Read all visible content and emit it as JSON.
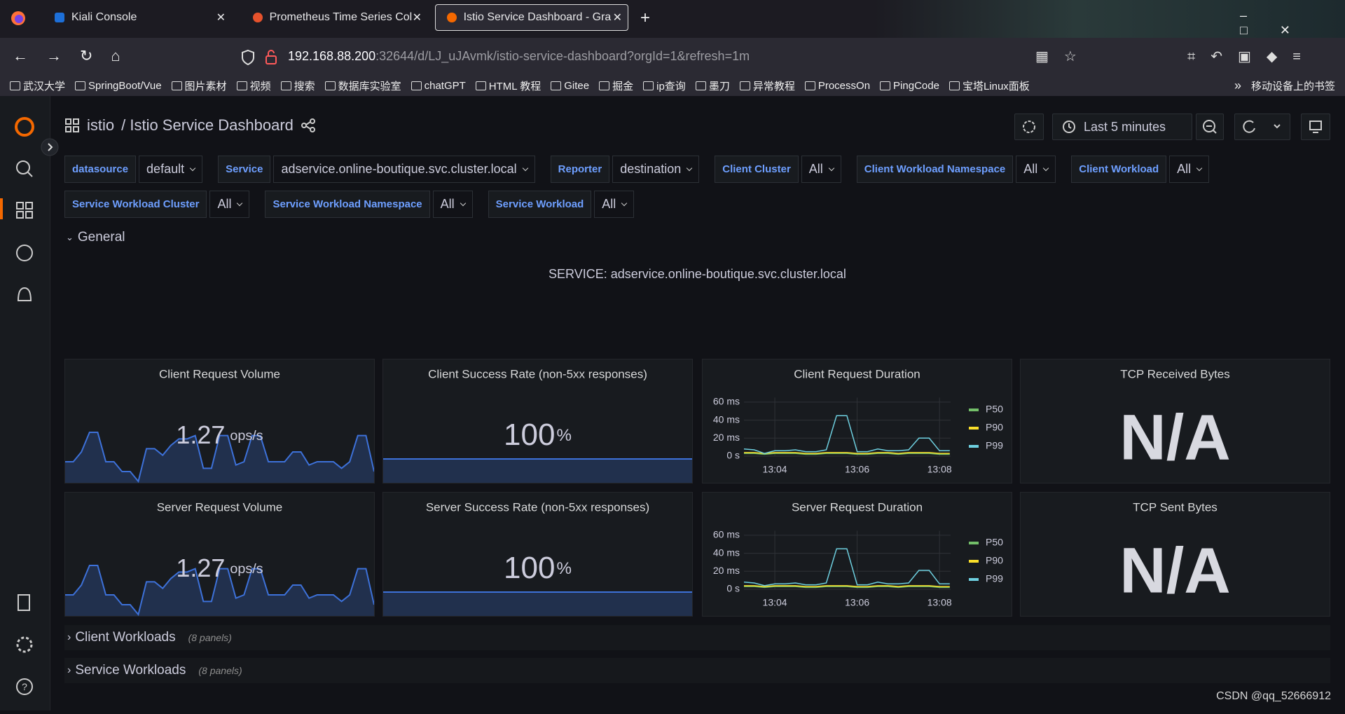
{
  "browser": {
    "tabs": [
      "Kiali Console",
      "Prometheus Time Series Coll",
      "Istio Service Dashboard - Gra"
    ],
    "url_host": "192.168.88.200",
    "url_rest": ":32644/d/LJ_uJAvmk/istio-service-dashboard?orgId=1&refresh=1m",
    "bookmarks": [
      "武汉大学",
      "SpringBoot/Vue",
      "图片素材",
      "视频",
      "搜索",
      "数据库实验室",
      "chatGPT",
      "HTML 教程",
      "Gitee",
      "掘金",
      "ip查询",
      "墨刀",
      "异常教程",
      "ProcessOn",
      "PingCode",
      "宝塔Linux面板"
    ],
    "mobile_bookmarks": "移动设备上的书签"
  },
  "dashboard": {
    "folder": "istio",
    "title": "/ Istio Service Dashboard",
    "time_range": "Last 5 minutes",
    "variables": [
      {
        "label": "datasource",
        "value": "default"
      },
      {
        "label": "Service",
        "value": "adservice.online-boutique.svc.cluster.local"
      },
      {
        "label": "Reporter",
        "value": "destination"
      },
      {
        "label": "Client Cluster",
        "value": "All"
      },
      {
        "label": "Client Workload Namespace",
        "value": "All"
      },
      {
        "label": "Client Workload",
        "value": "All"
      },
      {
        "label": "Service Workload Cluster",
        "value": "All"
      },
      {
        "label": "Service Workload Namespace",
        "value": "All"
      },
      {
        "label": "Service Workload",
        "value": "All"
      }
    ],
    "general_row": "General",
    "service_text": "SERVICE: adservice.online-boutique.svc.cluster.local",
    "panels": [
      {
        "type": "stat",
        "title": "Client Request Volume",
        "value": 1.27,
        "unit": "ops/s",
        "color": "#3d71d9",
        "sparkline": [
          0.6,
          0.6,
          0.9,
          1.5,
          1.5,
          0.6,
          0.6,
          0.3,
          0.3,
          0,
          1.0,
          1.0,
          0.8,
          1.1,
          1.3,
          1.3,
          1.4,
          0.4,
          0.4,
          1.4,
          1.4,
          0.5,
          0.6,
          1.4,
          1.4,
          0.6,
          0.6,
          0.6,
          0.9,
          0.9,
          0.5,
          0.6,
          0.6,
          0.6,
          0.4,
          0.6,
          1.4,
          1.4,
          0.3
        ]
      },
      {
        "type": "stat",
        "title": "Client Success Rate (non-5xx responses)",
        "value": 100,
        "unit": "%",
        "color": "#3d71d9",
        "sparkline": [
          100,
          100
        ]
      },
      {
        "type": "line",
        "title": "Client Request Duration",
        "x": [
          783.25,
          783.5,
          783.75,
          784,
          784.25,
          784.5,
          784.75,
          785,
          785.25,
          785.5,
          785.75,
          786,
          786.25,
          786.5,
          786.75,
          787,
          787.25,
          787.5,
          787.75,
          788,
          788.25
        ],
        "xlim": [
          783.25,
          788.27
        ],
        "xticks": [
          {
            "value": 784,
            "label": "13:04"
          },
          {
            "value": 786,
            "label": "13:06"
          },
          {
            "value": 788,
            "label": "13:08"
          }
        ],
        "ylim": [
          0,
          65
        ],
        "yticks": [
          {
            "value": 0,
            "label": "0 s"
          },
          {
            "value": 20,
            "label": "20 ms"
          },
          {
            "value": 40,
            "label": "40 ms"
          },
          {
            "value": 60,
            "label": "60 ms"
          }
        ],
        "series": [
          {
            "name": "P50",
            "color": "#73bf69",
            "values": [
              3,
              3,
              2,
              3,
              3,
              3,
              2,
              2,
              3,
              3,
              3,
              2,
              2,
              3,
              3,
              2,
              3,
              3,
              3,
              2,
              2
            ]
          },
          {
            "name": "P90",
            "color": "#fade2a",
            "values": [
              4,
              4,
              3,
              4,
              4,
              4,
              3,
              3,
              4,
              4,
              4,
              3,
              3,
              4,
              4,
              3,
              4,
              4,
              4,
              3,
              3
            ]
          },
          {
            "name": "P99",
            "color": "#6ed0e0",
            "values": [
              8,
              7,
              3,
              6,
              6,
              7,
              5,
              5,
              7,
              45,
              45,
              5,
              5,
              8,
              6,
              6,
              7,
              20,
              20,
              6,
              6
            ]
          }
        ]
      },
      {
        "type": "stat",
        "title": "TCP Received Bytes",
        "value": "N/A"
      },
      {
        "type": "stat",
        "title": "Server Request Volume",
        "value": 1.27,
        "unit": "ops/s",
        "color": "#3d71d9",
        "sparkline": [
          0.6,
          0.6,
          0.9,
          1.5,
          1.5,
          0.6,
          0.6,
          0.3,
          0.3,
          0,
          1.0,
          1.0,
          0.8,
          1.1,
          1.3,
          1.3,
          1.4,
          0.4,
          0.4,
          1.4,
          1.4,
          0.5,
          0.6,
          1.4,
          1.4,
          0.6,
          0.6,
          0.6,
          0.9,
          0.9,
          0.5,
          0.6,
          0.6,
          0.6,
          0.4,
          0.6,
          1.4,
          1.4,
          0.3
        ]
      },
      {
        "type": "stat",
        "title": "Server Success Rate (non-5xx responses)",
        "value": 100,
        "unit": "%",
        "color": "#3d71d9",
        "sparkline": [
          100,
          100
        ]
      },
      {
        "type": "line",
        "title": "Server Request Duration",
        "x": [
          783.25,
          783.5,
          783.75,
          784,
          784.25,
          784.5,
          784.75,
          785,
          785.25,
          785.5,
          785.75,
          786,
          786.25,
          786.5,
          786.75,
          787,
          787.25,
          787.5,
          787.75,
          788,
          788.25
        ],
        "xlim": [
          783.25,
          788.27
        ],
        "xticks": [
          {
            "value": 784,
            "label": "13:04"
          },
          {
            "value": 786,
            "label": "13:06"
          },
          {
            "value": 788,
            "label": "13:08"
          }
        ],
        "ylim": [
          0,
          65
        ],
        "yticks": [
          {
            "value": 0,
            "label": "0 s"
          },
          {
            "value": 20,
            "label": "20 ms"
          },
          {
            "value": 40,
            "label": "40 ms"
          },
          {
            "value": 60,
            "label": "60 ms"
          }
        ],
        "series": [
          {
            "name": "P50",
            "color": "#73bf69",
            "values": [
              3,
              3,
              2,
              3,
              3,
              3,
              2,
              2,
              3,
              3,
              3,
              2,
              2,
              3,
              3,
              2,
              3,
              3,
              3,
              2,
              2
            ]
          },
          {
            "name": "P90",
            "color": "#fade2a",
            "values": [
              4,
              4,
              3,
              4,
              4,
              4,
              3,
              3,
              4,
              4,
              4,
              3,
              3,
              4,
              4,
              3,
              4,
              4,
              4,
              3,
              3
            ]
          },
          {
            "name": "P99",
            "color": "#6ed0e0",
            "values": [
              8,
              7,
              4,
              6,
              6,
              7,
              5,
              5,
              7,
              45,
              45,
              5,
              5,
              8,
              6,
              6,
              7,
              21,
              21,
              6,
              6
            ]
          }
        ]
      },
      {
        "type": "stat",
        "title": "TCP Sent Bytes",
        "value": "N/A"
      }
    ],
    "collapsed_rows": [
      {
        "title": "Client Workloads",
        "count": "(8 panels)"
      },
      {
        "title": "Service Workloads",
        "count": "(8 panels)"
      }
    ]
  },
  "watermark": "CSDN @qq_52666912"
}
